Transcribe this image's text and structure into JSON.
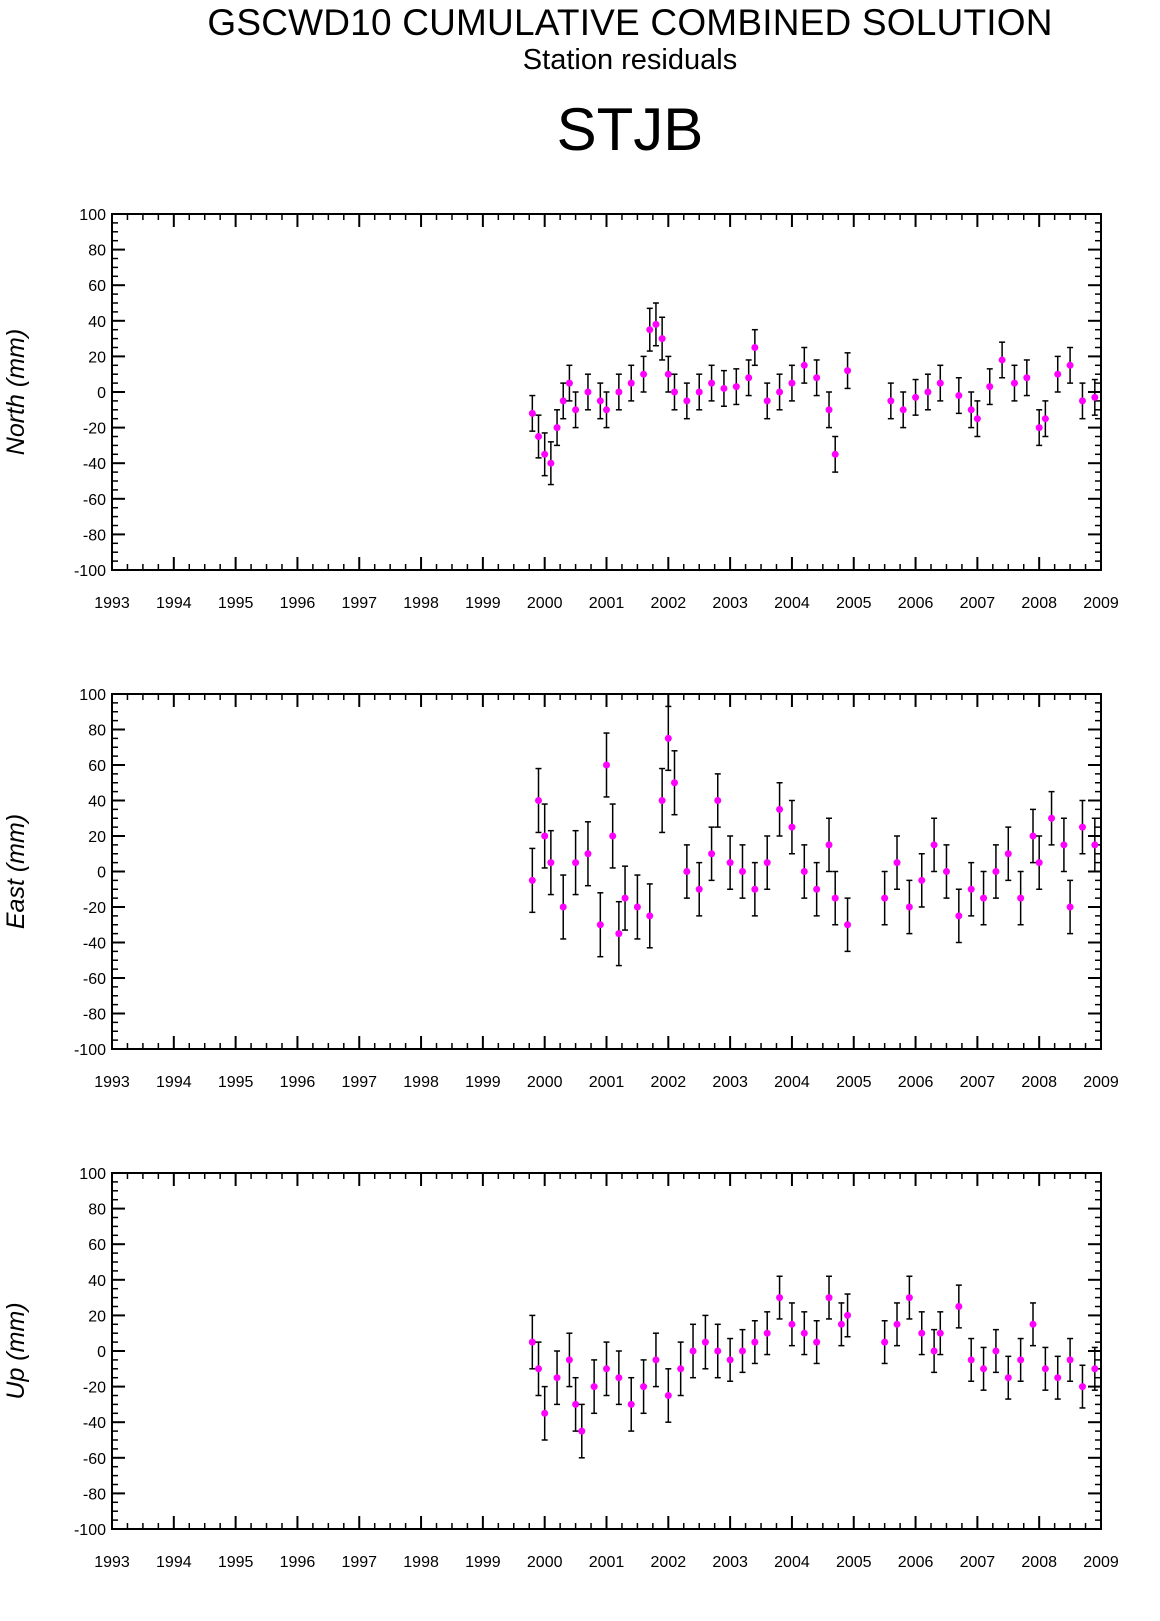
{
  "header": {
    "title": "GSCWD10 CUMULATIVE COMBINED SOLUTION",
    "subtitle": "Station residuals",
    "station": "STJB"
  },
  "colors": {
    "marker": "#ff00ff",
    "errorbar": "#000000",
    "axes": "#000000",
    "background": "#ffffff"
  },
  "chart_data": [
    {
      "type": "scatter",
      "ylabel": "North (mm)",
      "xlim": [
        1993,
        2009
      ],
      "ylim": [
        -100,
        100
      ],
      "x_ticks": [
        "1993",
        "1994",
        "1995",
        "1996",
        "1997",
        "1998",
        "1999",
        "2000",
        "2001",
        "2002",
        "2003",
        "2004",
        "2005",
        "2006",
        "2007",
        "2008",
        "2009"
      ],
      "y_ticks": [
        "100",
        "80",
        "60",
        "40",
        "20",
        "0",
        "-20",
        "-40",
        "-60",
        "-80",
        "-100"
      ],
      "grid": false,
      "error_bars": true,
      "series": [
        {
          "x": [
            1999.8,
            1999.9,
            2000.0,
            2000.1,
            2000.2,
            2000.3,
            2000.4,
            2000.5,
            2000.7,
            2000.9,
            2001.0,
            2001.2,
            2001.4,
            2001.6,
            2001.7,
            2001.8,
            2001.9,
            2002.0,
            2002.1,
            2002.3,
            2002.5,
            2002.7,
            2002.9,
            2003.1,
            2003.3,
            2003.4,
            2003.6,
            2003.8,
            2004.0,
            2004.2,
            2004.4,
            2004.6,
            2004.7,
            2004.9,
            2005.6,
            2005.8,
            2006.0,
            2006.2,
            2006.4,
            2006.7,
            2006.9,
            2007.0,
            2007.2,
            2007.4,
            2007.6,
            2007.8,
            2008.0,
            2008.1,
            2008.3,
            2008.5,
            2008.7,
            2008.9
          ],
          "y": [
            -12,
            -25,
            -35,
            -40,
            -20,
            -5,
            5,
            -10,
            0,
            -5,
            -10,
            0,
            5,
            10,
            35,
            38,
            30,
            10,
            0,
            -5,
            0,
            5,
            2,
            3,
            8,
            25,
            -5,
            0,
            5,
            15,
            8,
            -10,
            -35,
            12,
            -5,
            -10,
            -3,
            0,
            5,
            -2,
            -10,
            -15,
            3,
            18,
            5,
            8,
            -20,
            -15,
            10,
            15,
            -5,
            -3
          ],
          "err": [
            10,
            12,
            12,
            12,
            10,
            10,
            10,
            10,
            10,
            10,
            10,
            10,
            10,
            10,
            12,
            12,
            12,
            10,
            10,
            10,
            10,
            10,
            10,
            10,
            10,
            10,
            10,
            10,
            10,
            10,
            10,
            10,
            10,
            10,
            10,
            10,
            10,
            10,
            10,
            10,
            10,
            10,
            10,
            10,
            10,
            10,
            10,
            10,
            10,
            10,
            10,
            10
          ]
        }
      ]
    },
    {
      "type": "scatter",
      "ylabel": "East (mm)",
      "xlim": [
        1993,
        2009
      ],
      "ylim": [
        -100,
        100
      ],
      "x_ticks": [
        "1993",
        "1994",
        "1995",
        "1996",
        "1997",
        "1998",
        "1999",
        "2000",
        "2001",
        "2002",
        "2003",
        "2004",
        "2005",
        "2006",
        "2007",
        "2008",
        "2009"
      ],
      "y_ticks": [
        "100",
        "80",
        "60",
        "40",
        "20",
        "0",
        "-20",
        "-40",
        "-60",
        "-80",
        "-100"
      ],
      "grid": false,
      "error_bars": true,
      "series": [
        {
          "x": [
            1999.8,
            1999.9,
            2000.0,
            2000.1,
            2000.3,
            2000.5,
            2000.7,
            2000.9,
            2001.0,
            2001.1,
            2001.2,
            2001.3,
            2001.5,
            2001.7,
            2001.9,
            2002.0,
            2002.1,
            2002.3,
            2002.5,
            2002.7,
            2002.8,
            2003.0,
            2003.2,
            2003.4,
            2003.6,
            2003.8,
            2004.0,
            2004.2,
            2004.4,
            2004.6,
            2004.7,
            2004.9,
            2005.5,
            2005.7,
            2005.9,
            2006.1,
            2006.3,
            2006.5,
            2006.7,
            2006.9,
            2007.1,
            2007.3,
            2007.5,
            2007.7,
            2007.9,
            2008.0,
            2008.2,
            2008.4,
            2008.5,
            2008.7,
            2008.9
          ],
          "y": [
            -5,
            40,
            20,
            5,
            -20,
            5,
            10,
            -30,
            60,
            20,
            -35,
            -15,
            -20,
            -25,
            40,
            75,
            50,
            0,
            -10,
            10,
            40,
            5,
            0,
            -10,
            5,
            35,
            25,
            0,
            -10,
            15,
            -15,
            -30,
            -15,
            5,
            -20,
            -5,
            15,
            0,
            -25,
            -10,
            -15,
            0,
            10,
            -15,
            20,
            5,
            30,
            15,
            -20,
            25,
            15
          ],
          "err": [
            18,
            18,
            18,
            18,
            18,
            18,
            18,
            18,
            18,
            18,
            18,
            18,
            18,
            18,
            18,
            18,
            18,
            15,
            15,
            15,
            15,
            15,
            15,
            15,
            15,
            15,
            15,
            15,
            15,
            15,
            15,
            15,
            15,
            15,
            15,
            15,
            15,
            15,
            15,
            15,
            15,
            15,
            15,
            15,
            15,
            15,
            15,
            15,
            15,
            15,
            15
          ]
        }
      ]
    },
    {
      "type": "scatter",
      "ylabel": "Up (mm)",
      "xlim": [
        1993,
        2009
      ],
      "ylim": [
        -100,
        100
      ],
      "x_ticks": [
        "1993",
        "1994",
        "1995",
        "1996",
        "1997",
        "1998",
        "1999",
        "2000",
        "2001",
        "2002",
        "2003",
        "2004",
        "2005",
        "2006",
        "2007",
        "2008",
        "2009"
      ],
      "y_ticks": [
        "100",
        "80",
        "60",
        "40",
        "20",
        "0",
        "-20",
        "-40",
        "-60",
        "-80",
        "-100"
      ],
      "grid": false,
      "error_bars": true,
      "series": [
        {
          "x": [
            1999.8,
            1999.9,
            2000.0,
            2000.2,
            2000.4,
            2000.5,
            2000.6,
            2000.8,
            2001.0,
            2001.2,
            2001.4,
            2001.6,
            2001.8,
            2002.0,
            2002.2,
            2002.4,
            2002.6,
            2002.8,
            2003.0,
            2003.2,
            2003.4,
            2003.6,
            2003.8,
            2004.0,
            2004.2,
            2004.4,
            2004.6,
            2004.8,
            2004.9,
            2005.5,
            2005.7,
            2005.9,
            2006.1,
            2006.3,
            2006.4,
            2006.7,
            2006.9,
            2007.1,
            2007.3,
            2007.5,
            2007.7,
            2007.9,
            2008.1,
            2008.3,
            2008.5,
            2008.7,
            2008.9
          ],
          "y": [
            5,
            -10,
            -35,
            -15,
            -5,
            -30,
            -45,
            -20,
            -10,
            -15,
            -30,
            -20,
            -5,
            -25,
            -10,
            0,
            5,
            0,
            -5,
            0,
            5,
            10,
            30,
            15,
            10,
            5,
            30,
            15,
            20,
            5,
            15,
            30,
            10,
            0,
            10,
            25,
            -5,
            -10,
            0,
            -15,
            -5,
            15,
            -10,
            -15,
            -5,
            -20,
            -10
          ],
          "err": [
            15,
            15,
            15,
            15,
            15,
            15,
            15,
            15,
            15,
            15,
            15,
            15,
            15,
            15,
            15,
            15,
            15,
            15,
            12,
            12,
            12,
            12,
            12,
            12,
            12,
            12,
            12,
            12,
            12,
            12,
            12,
            12,
            12,
            12,
            12,
            12,
            12,
            12,
            12,
            12,
            12,
            12,
            12,
            12,
            12,
            12,
            12
          ]
        }
      ]
    }
  ]
}
